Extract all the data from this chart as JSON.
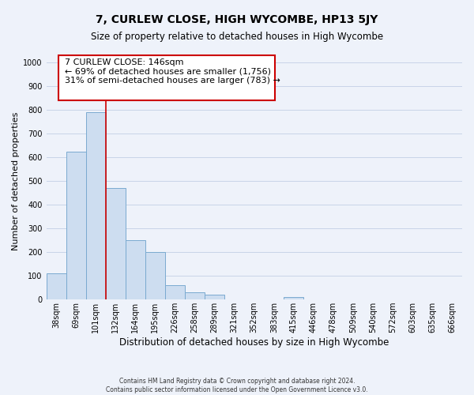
{
  "title": "7, CURLEW CLOSE, HIGH WYCOMBE, HP13 5JY",
  "subtitle": "Size of property relative to detached houses in High Wycombe",
  "xlabel": "Distribution of detached houses by size in High Wycombe",
  "ylabel": "Number of detached properties",
  "bar_labels": [
    "38sqm",
    "69sqm",
    "101sqm",
    "132sqm",
    "164sqm",
    "195sqm",
    "226sqm",
    "258sqm",
    "289sqm",
    "321sqm",
    "352sqm",
    "383sqm",
    "415sqm",
    "446sqm",
    "478sqm",
    "509sqm",
    "540sqm",
    "572sqm",
    "603sqm",
    "635sqm",
    "666sqm"
  ],
  "bar_values": [
    110,
    625,
    790,
    470,
    250,
    200,
    60,
    30,
    20,
    0,
    0,
    0,
    12,
    0,
    0,
    0,
    0,
    0,
    0,
    0,
    0
  ],
  "bar_color": "#cdddf0",
  "bar_edge_color": "#7aaad0",
  "vline_color": "#cc0000",
  "vline_pos": 2.5,
  "ylim": [
    0,
    1000
  ],
  "yticks": [
    0,
    100,
    200,
    300,
    400,
    500,
    600,
    700,
    800,
    900,
    1000
  ],
  "annotation_text_line1": "7 CURLEW CLOSE: 146sqm",
  "annotation_text_line2": "← 69% of detached houses are smaller (1,756)",
  "annotation_text_line3": "31% of semi-detached houses are larger (783) →",
  "footer_line1": "Contains HM Land Registry data © Crown copyright and database right 2024.",
  "footer_line2": "Contains public sector information licensed under the Open Government Licence v3.0.",
  "grid_color": "#c8d4e8",
  "background_color": "#eef2fa",
  "title_fontsize": 10,
  "subtitle_fontsize": 8.5,
  "xlabel_fontsize": 8.5,
  "ylabel_fontsize": 8,
  "tick_fontsize": 7,
  "footer_fontsize": 5.5,
  "ann_fontsize": 8
}
